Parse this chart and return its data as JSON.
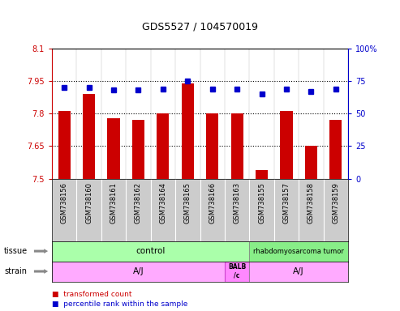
{
  "title": "GDS5527 / 104570019",
  "samples": [
    "GSM738156",
    "GSM738160",
    "GSM738161",
    "GSM738162",
    "GSM738164",
    "GSM738165",
    "GSM738166",
    "GSM738163",
    "GSM738155",
    "GSM738157",
    "GSM738158",
    "GSM738159"
  ],
  "bar_values": [
    7.81,
    7.89,
    7.78,
    7.77,
    7.8,
    7.94,
    7.8,
    7.8,
    7.54,
    7.81,
    7.65,
    7.77
  ],
  "dot_values": [
    70,
    70,
    68,
    68,
    69,
    75,
    69,
    69,
    65,
    69,
    67,
    69
  ],
  "ylim": [
    7.5,
    8.1
  ],
  "y2lim": [
    0,
    100
  ],
  "yticks": [
    7.5,
    7.65,
    7.8,
    7.95,
    8.1
  ],
  "y2ticks": [
    0,
    25,
    50,
    75,
    100
  ],
  "bar_color": "#cc0000",
  "dot_color": "#0000cc",
  "tissue_control_samples": 8,
  "tissue_control_label": "control",
  "tissue_tumor_label": "rhabdomyosarcoma tumor",
  "tissue_control_color": "#aaffaa",
  "tissue_tumor_color": "#88ee88",
  "strain_aj1_samples": 7,
  "strain_balb_samples": 1,
  "strain_aj2_samples": 4,
  "strain_aj_label": "A/J",
  "strain_balb_label": "BALB\n/c",
  "strain_color": "#ffaaff",
  "strain_balb_color": "#ff88ff",
  "legend_bar_label": "transformed count",
  "legend_dot_label": "percentile rank within the sample",
  "background_color": "#ffffff",
  "axes_area_color": "#ffffff",
  "label_area_color": "#cccccc"
}
